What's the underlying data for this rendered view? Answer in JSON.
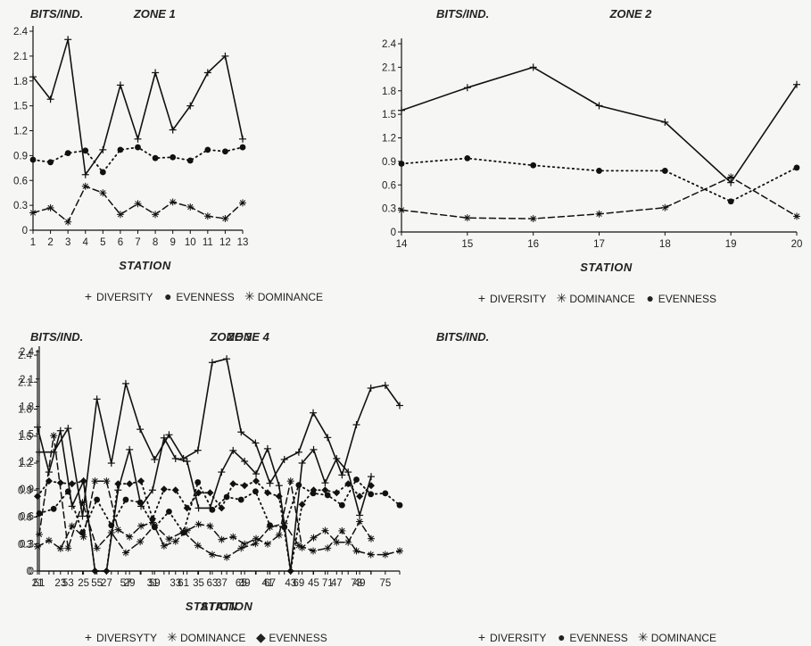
{
  "chart_data": [
    {
      "type": "line",
      "ylabel": "BITS/IND.",
      "title": "ZONE 1",
      "xlabel": "STATION",
      "x": [
        1,
        2,
        3,
        4,
        5,
        6,
        7,
        8,
        9,
        10,
        11,
        12,
        13
      ],
      "xticks": [
        "1",
        "2",
        "3",
        "4",
        "5",
        "6",
        "7",
        "8",
        "9",
        "10",
        "11",
        "12",
        "13"
      ],
      "ylim": [
        0,
        2.4
      ],
      "yticks": [
        "0",
        "0.3",
        "0.6",
        "0.9",
        "1.2",
        "1.5",
        "1.8",
        "2.1",
        "2.4"
      ],
      "series": [
        {
          "name": "DIVERSITY",
          "style": "solid",
          "marker": "plus",
          "values": [
            1.85,
            1.58,
            2.3,
            0.67,
            0.97,
            1.75,
            1.1,
            1.9,
            1.21,
            1.5,
            1.9,
            2.1,
            1.1
          ]
        },
        {
          "name": "EVENNESS",
          "style": "dotted",
          "marker": "dot",
          "values": [
            0.85,
            0.82,
            0.93,
            0.96,
            0.7,
            0.97,
            1.0,
            0.87,
            0.88,
            0.84,
            0.97,
            0.95,
            1.0
          ]
        },
        {
          "name": "DOMINANCE",
          "style": "dashed",
          "marker": "star",
          "values": [
            0.21,
            0.27,
            0.1,
            0.53,
            0.45,
            0.19,
            0.32,
            0.19,
            0.34,
            0.28,
            0.17,
            0.14,
            0.33
          ]
        }
      ],
      "legend": [
        "DIVERSITY",
        "EVENNESS",
        "DOMINANCE"
      ]
    },
    {
      "type": "line",
      "ylabel": "BITS/IND.",
      "title": "ZONE 2",
      "xlabel": "STATION",
      "x": [
        14,
        15,
        16,
        17,
        18,
        19,
        20
      ],
      "xticks": [
        "14",
        "15",
        "16",
        "17",
        "18",
        "19",
        "20"
      ],
      "ylim": [
        0,
        2.4
      ],
      "yticks": [
        "0",
        "0.3",
        "0.6",
        "0.9",
        "1.2",
        "1.5",
        "1.8",
        "2.1",
        "2.4"
      ],
      "series": [
        {
          "name": "DIVERSITY",
          "style": "solid",
          "marker": "plus",
          "values": [
            1.55,
            1.84,
            2.1,
            1.61,
            1.4,
            0.63,
            1.88
          ]
        },
        {
          "name": "DOMINANCE",
          "style": "dashed",
          "marker": "star",
          "values": [
            0.28,
            0.18,
            0.17,
            0.23,
            0.31,
            0.7,
            0.2
          ]
        },
        {
          "name": "EVENNESS",
          "style": "dotted",
          "marker": "dot",
          "values": [
            0.87,
            0.94,
            0.85,
            0.78,
            0.78,
            0.39,
            0.82
          ]
        }
      ],
      "legend": [
        "DIVERSITY",
        "DOMINANCE",
        "EVENNESS"
      ]
    },
    {
      "type": "line",
      "ylabel": "BITS/IND.",
      "title": "ZONE 3",
      "xlabel": "STATION",
      "x": [
        21,
        22,
        23,
        24,
        25,
        26,
        27,
        28,
        29,
        30,
        31,
        32,
        33,
        34,
        35,
        36,
        37,
        38,
        39,
        40,
        41,
        42,
        43,
        44,
        45,
        46,
        47,
        48,
        49,
        50
      ],
      "xticks": [
        "21",
        "23",
        "25",
        "27",
        "29",
        "31",
        "33",
        "35",
        "37",
        "39",
        "41",
        "43",
        "45",
        "47",
        "49"
      ],
      "ylim": [
        0,
        2.4
      ],
      "yticks": [
        "0",
        "0.3",
        "0.6",
        "0.9",
        "1.2",
        "1.5",
        "1.8",
        "2.1",
        "2.4"
      ],
      "series": [
        {
          "name": "DIVERSYTY",
          "style": "solid",
          "marker": "plus",
          "values": [
            1.6,
            1.1,
            1.56,
            0.72,
            1.0,
            0.0,
            0.0,
            0.9,
            1.35,
            0.72,
            0.9,
            1.48,
            1.25,
            1.22,
            0.7,
            0.7,
            1.1,
            1.34,
            1.22,
            1.08,
            1.36,
            0.95,
            0.0,
            1.2,
            1.35,
            0.98,
            1.25,
            1.1,
            0.62,
            1.05
          ]
        },
        {
          "name": "DOMINANCE",
          "style": "dashed",
          "marker": "star",
          "values": [
            0.27,
            0.34,
            0.25,
            0.5,
            0.38,
            1.0,
            1.0,
            0.46,
            0.38,
            0.5,
            0.54,
            0.28,
            0.33,
            0.45,
            0.52,
            0.5,
            0.35,
            0.38,
            0.3,
            0.36,
            0.3,
            0.4,
            1.0,
            0.26,
            0.37,
            0.45,
            0.32,
            0.32,
            0.55,
            0.36
          ]
        },
        {
          "name": "EVENNESS",
          "style": "dotted",
          "marker": "diamond",
          "values": [
            0.83,
            1.0,
            0.98,
            0.97,
            1.0,
            0.0,
            0.0,
            0.97,
            0.97,
            1.0,
            0.58,
            0.91,
            0.9,
            0.7,
            0.87,
            0.87,
            0.7,
            0.97,
            0.95,
            1.0,
            0.87,
            0.83,
            0.0,
            0.74,
            0.9,
            0.9,
            0.87,
            0.97,
            0.83,
            0.95
          ]
        }
      ],
      "legend": [
        "DIVERSYTY",
        "DOMINANCE",
        "EVENNESS"
      ]
    },
    {
      "type": "line",
      "ylabel": "BITS/IND.",
      "title": "ZONE 4",
      "xlabel": "STATION",
      "x": [
        51,
        52,
        53,
        54,
        55,
        56,
        57,
        58,
        59,
        60,
        61,
        62,
        63,
        64,
        65,
        66,
        67,
        68,
        69,
        70,
        71,
        72,
        73,
        74,
        75,
        76
      ],
      "xticks": [
        "51",
        "53",
        "55",
        "57",
        "59",
        "61",
        "63",
        "65",
        "67",
        "69",
        "71",
        "73",
        "75"
      ],
      "ylim": [
        0,
        2.4
      ],
      "yticks": [
        "0",
        "0.3",
        "0.6",
        "0.9",
        "1.2",
        "1.5",
        "1.8",
        "2.1",
        "2.4"
      ],
      "series": [
        {
          "name": "DIVERSITY",
          "style": "solid",
          "marker": "plus",
          "values": [
            1.3,
            1.3,
            1.56,
            0.6,
            1.88,
            1.18,
            2.05,
            1.55,
            1.22,
            1.49,
            1.23,
            1.32,
            2.28,
            2.32,
            1.52,
            1.4,
            0.96,
            1.22,
            1.3,
            1.73,
            1.46,
            1.05,
            1.6,
            2.0,
            2.03,
            1.81
          ]
        },
        {
          "name": "EVENNESS",
          "style": "dotted",
          "marker": "dot",
          "values": [
            0.63,
            0.68,
            0.87,
            0.42,
            0.78,
            0.5,
            0.78,
            0.75,
            0.48,
            0.65,
            0.42,
            0.97,
            0.67,
            0.81,
            0.78,
            0.87,
            0.5,
            0.48,
            0.94,
            0.85,
            0.83,
            0.72,
            1.0,
            0.84,
            0.85,
            0.72
          ]
        },
        {
          "name": "DOMINANCE",
          "style": "dashed",
          "marker": "star",
          "values": [
            0.4,
            1.48,
            0.25,
            0.75,
            0.25,
            0.42,
            0.2,
            0.32,
            0.5,
            0.35,
            0.43,
            0.28,
            0.18,
            0.15,
            0.25,
            0.3,
            0.48,
            0.52,
            0.28,
            0.22,
            0.25,
            0.44,
            0.22,
            0.18,
            0.18,
            0.22
          ]
        }
      ],
      "legend": [
        "DIVERSITY",
        "EVENNESS",
        "DOMINANCE"
      ]
    }
  ],
  "symbols": {
    "plus": "+",
    "dot": "●",
    "diamond": "◆",
    "star": "✳"
  }
}
